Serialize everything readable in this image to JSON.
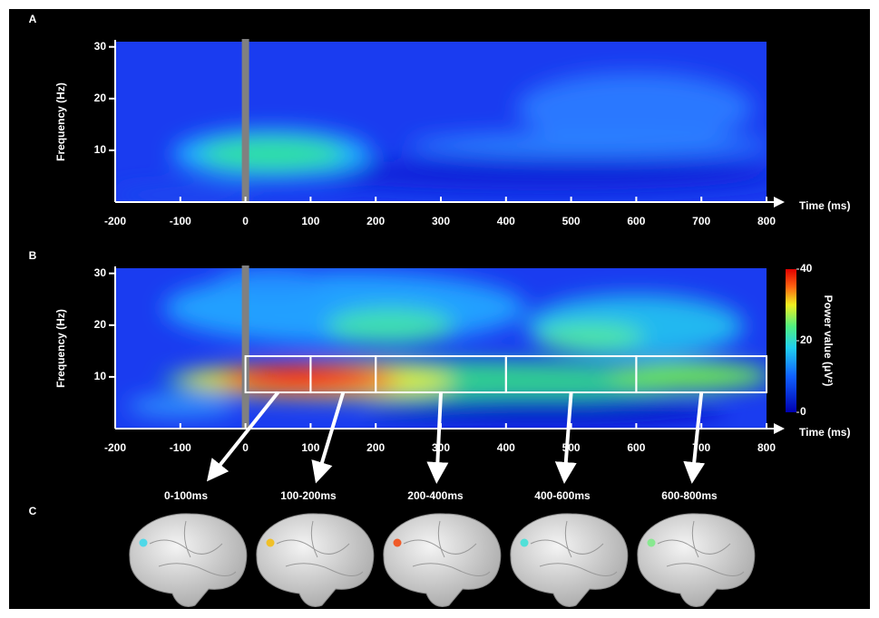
{
  "chart_data": [
    {
      "type": "heatmap",
      "label": "A",
      "xlabel": "Time (ms)",
      "ylabel": "Frequency (Hz)",
      "xlim": [
        -200,
        800
      ],
      "ylim": [
        0,
        31
      ],
      "xticks": [
        -200,
        -100,
        0,
        100,
        200,
        300,
        400,
        500,
        600,
        700,
        800
      ],
      "yticks": [
        10,
        20,
        30
      ],
      "onset": 0
    },
    {
      "type": "heatmap",
      "label": "B",
      "xlabel": "Time (ms)",
      "ylabel": "Frequency (Hz)",
      "xlim": [
        -200,
        800
      ],
      "ylim": [
        0,
        31
      ],
      "xticks": [
        -200,
        -100,
        0,
        100,
        200,
        300,
        400,
        500,
        600,
        700,
        800
      ],
      "yticks": [
        10,
        20,
        30
      ],
      "onset": 0,
      "colorbar": {
        "label": "Power value (μV²)",
        "lim": [
          0,
          40
        ],
        "ticks": [
          0,
          20,
          40
        ]
      },
      "window_freq": [
        7,
        14
      ],
      "windows": [
        {
          "start": 0,
          "end": 100,
          "label": "0-100ms",
          "color": "#4fd8e8"
        },
        {
          "start": 100,
          "end": 200,
          "label": "100-200ms",
          "color": "#f0c028"
        },
        {
          "start": 200,
          "end": 400,
          "label": "200-400ms",
          "color": "#f05a28"
        },
        {
          "start": 400,
          "end": 600,
          "label": "400-600ms",
          "color": "#50e0d8"
        },
        {
          "start": 600,
          "end": 800,
          "label": "600-800ms",
          "color": "#88e890"
        }
      ]
    }
  ],
  "panel_c": {
    "label": "C"
  }
}
